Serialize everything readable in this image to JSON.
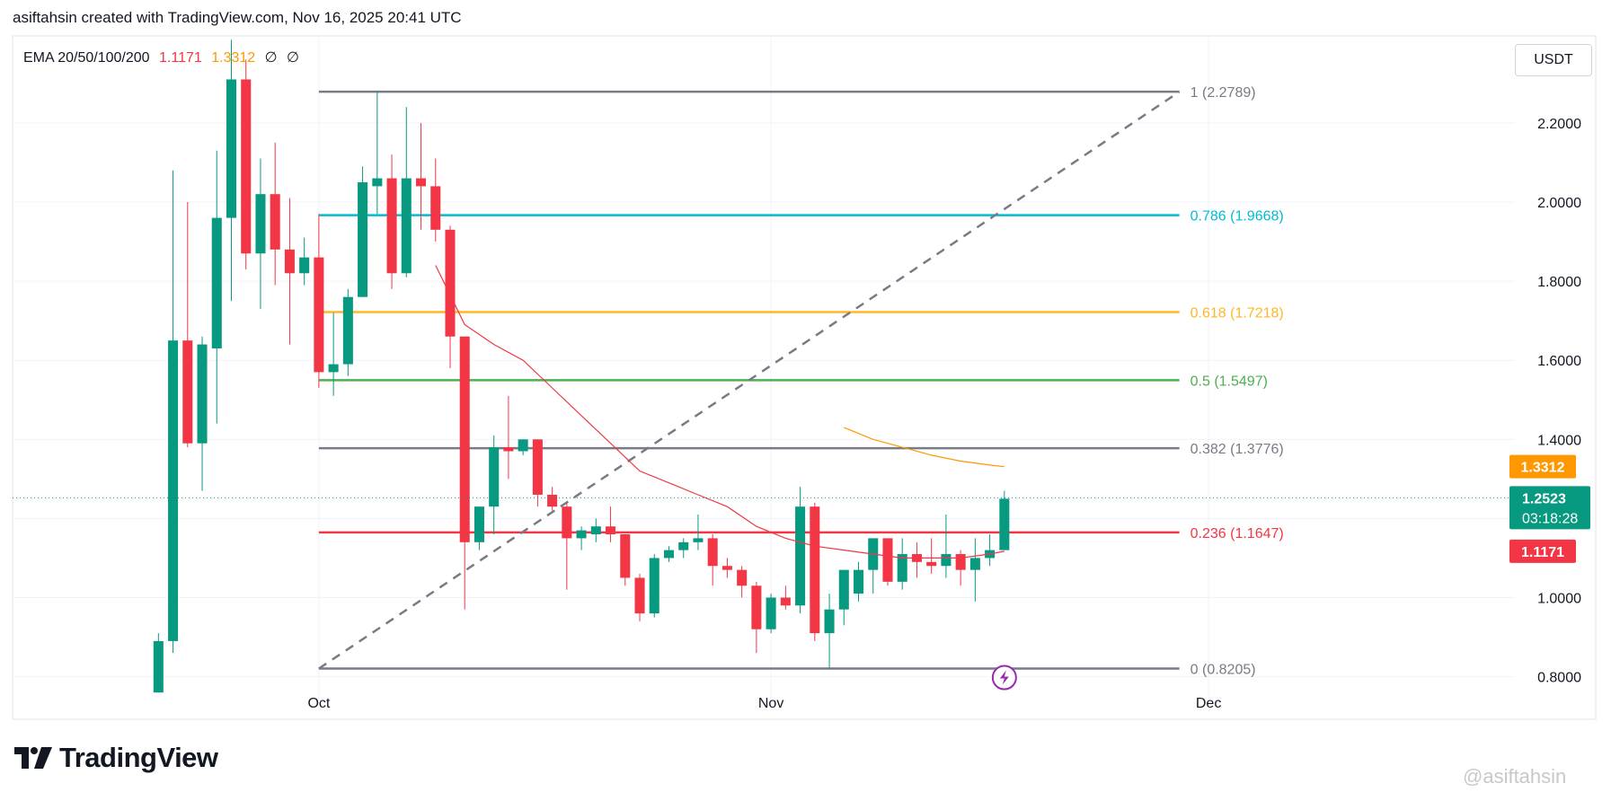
{
  "header": {
    "text": "asiftahsin created with TradingView.com, Nov 16, 2025 20:41 UTC"
  },
  "ema_legend": {
    "label": "EMA 20/50/100/200",
    "ema20": "1.1171",
    "ema50": "1.3312",
    "ema100": "∅",
    "ema200": "∅"
  },
  "currency": "USDT",
  "logo_text": "TradingView",
  "watermark": "@asiftahsin",
  "colors": {
    "up": "#089981",
    "down": "#f23645",
    "ema20": "#f23645",
    "ema50": "#ff9800",
    "last_price": "#089981"
  },
  "price_tags": {
    "ema50": {
      "value": "1.3312",
      "color": "#ff9800"
    },
    "last": {
      "value": "1.2523",
      "countdown": "03:18:28",
      "color": "#089981"
    },
    "ema20": {
      "value": "1.1171",
      "color": "#f23645"
    }
  },
  "chart_data": {
    "type": "candlestick",
    "ylim": [
      0.74,
      2.42
    ],
    "y_ticks": [
      "2.2000",
      "2.0000",
      "1.8000",
      "1.6000",
      "1.4000",
      "1.2000",
      "1.0000",
      "0.8000"
    ],
    "x_ticks": [
      {
        "label": "Oct",
        "date": "2025-10-01"
      },
      {
        "label": "Nov",
        "date": "2025-11-01"
      },
      {
        "label": "Dec",
        "date": "2025-12-01"
      }
    ],
    "xlim": [
      "2025-09-10",
      "2025-12-22"
    ],
    "candles": [
      {
        "d": "2025-09-20",
        "o": 0.76,
        "h": 0.91,
        "l": 0.76,
        "c": 0.89
      },
      {
        "d": "2025-09-21",
        "o": 0.89,
        "h": 2.08,
        "l": 0.86,
        "c": 1.65
      },
      {
        "d": "2025-09-22",
        "o": 1.65,
        "h": 2.0,
        "l": 1.38,
        "c": 1.39
      },
      {
        "d": "2025-09-23",
        "o": 1.39,
        "h": 1.66,
        "l": 1.27,
        "c": 1.64
      },
      {
        "d": "2025-09-24",
        "o": 1.63,
        "h": 2.13,
        "l": 1.44,
        "c": 1.96
      },
      {
        "d": "2025-09-25",
        "o": 1.96,
        "h": 2.41,
        "l": 1.75,
        "c": 2.31
      },
      {
        "d": "2025-09-26",
        "o": 2.31,
        "h": 2.36,
        "l": 1.83,
        "c": 1.87
      },
      {
        "d": "2025-09-27",
        "o": 1.87,
        "h": 2.11,
        "l": 1.73,
        "c": 2.02
      },
      {
        "d": "2025-09-28",
        "o": 2.02,
        "h": 2.15,
        "l": 1.79,
        "c": 1.88
      },
      {
        "d": "2025-09-29",
        "o": 1.88,
        "h": 2.01,
        "l": 1.64,
        "c": 1.82
      },
      {
        "d": "2025-09-30",
        "o": 1.82,
        "h": 1.91,
        "l": 1.79,
        "c": 1.86
      },
      {
        "d": "2025-10-01",
        "o": 1.86,
        "h": 1.97,
        "l": 1.53,
        "c": 1.57
      },
      {
        "d": "2025-10-02",
        "o": 1.57,
        "h": 1.72,
        "l": 1.51,
        "c": 1.59
      },
      {
        "d": "2025-10-03",
        "o": 1.59,
        "h": 1.78,
        "l": 1.56,
        "c": 1.76
      },
      {
        "d": "2025-10-04",
        "o": 1.76,
        "h": 2.09,
        "l": 1.76,
        "c": 2.05
      },
      {
        "d": "2025-10-05",
        "o": 2.04,
        "h": 2.28,
        "l": 1.97,
        "c": 2.06
      },
      {
        "d": "2025-10-06",
        "o": 2.06,
        "h": 2.12,
        "l": 1.78,
        "c": 1.82
      },
      {
        "d": "2025-10-07",
        "o": 1.82,
        "h": 2.24,
        "l": 1.81,
        "c": 2.06
      },
      {
        "d": "2025-10-08",
        "o": 2.06,
        "h": 2.2,
        "l": 1.93,
        "c": 2.04
      },
      {
        "d": "2025-10-09",
        "o": 2.04,
        "h": 2.11,
        "l": 1.9,
        "c": 1.93
      },
      {
        "d": "2025-10-10",
        "o": 1.93,
        "h": 1.94,
        "l": 1.58,
        "c": 1.66
      },
      {
        "d": "2025-10-11",
        "o": 1.66,
        "h": 1.66,
        "l": 0.97,
        "c": 1.14
      },
      {
        "d": "2025-10-12",
        "o": 1.14,
        "h": 1.23,
        "l": 1.12,
        "c": 1.23
      },
      {
        "d": "2025-10-13",
        "o": 1.23,
        "h": 1.41,
        "l": 1.16,
        "c": 1.38
      },
      {
        "d": "2025-10-14",
        "o": 1.38,
        "h": 1.51,
        "l": 1.3,
        "c": 1.37
      },
      {
        "d": "2025-10-15",
        "o": 1.37,
        "h": 1.4,
        "l": 1.36,
        "c": 1.4
      },
      {
        "d": "2025-10-16",
        "o": 1.4,
        "h": 1.4,
        "l": 1.23,
        "c": 1.26
      },
      {
        "d": "2025-10-17",
        "o": 1.26,
        "h": 1.28,
        "l": 1.22,
        "c": 1.23
      },
      {
        "d": "2025-10-18",
        "o": 1.23,
        "h": 1.24,
        "l": 1.02,
        "c": 1.15
      },
      {
        "d": "2025-10-19",
        "o": 1.15,
        "h": 1.18,
        "l": 1.12,
        "c": 1.17
      },
      {
        "d": "2025-10-20",
        "o": 1.16,
        "h": 1.2,
        "l": 1.14,
        "c": 1.18
      },
      {
        "d": "2025-10-21",
        "o": 1.18,
        "h": 1.23,
        "l": 1.14,
        "c": 1.16
      },
      {
        "d": "2025-10-22",
        "o": 1.16,
        "h": 1.16,
        "l": 1.03,
        "c": 1.05
      },
      {
        "d": "2025-10-23",
        "o": 1.05,
        "h": 1.06,
        "l": 0.94,
        "c": 0.96
      },
      {
        "d": "2025-10-24",
        "o": 0.96,
        "h": 1.11,
        "l": 0.95,
        "c": 1.1
      },
      {
        "d": "2025-10-25",
        "o": 1.1,
        "h": 1.13,
        "l": 1.09,
        "c": 1.12
      },
      {
        "d": "2025-10-26",
        "o": 1.12,
        "h": 1.15,
        "l": 1.1,
        "c": 1.14
      },
      {
        "d": "2025-10-27",
        "o": 1.14,
        "h": 1.21,
        "l": 1.12,
        "c": 1.15
      },
      {
        "d": "2025-10-28",
        "o": 1.15,
        "h": 1.16,
        "l": 1.03,
        "c": 1.08
      },
      {
        "d": "2025-10-29",
        "o": 1.08,
        "h": 1.1,
        "l": 1.05,
        "c": 1.07
      },
      {
        "d": "2025-10-30",
        "o": 1.07,
        "h": 1.08,
        "l": 1.0,
        "c": 1.03
      },
      {
        "d": "2025-10-31",
        "o": 1.03,
        "h": 1.04,
        "l": 0.86,
        "c": 0.92
      },
      {
        "d": "2025-11-01",
        "o": 0.92,
        "h": 1.01,
        "l": 0.91,
        "c": 1.0
      },
      {
        "d": "2025-11-02",
        "o": 1.0,
        "h": 1.03,
        "l": 0.97,
        "c": 0.98
      },
      {
        "d": "2025-11-03",
        "o": 0.98,
        "h": 1.28,
        "l": 0.96,
        "c": 1.23
      },
      {
        "d": "2025-11-04",
        "o": 1.23,
        "h": 1.24,
        "l": 0.89,
        "c": 0.91
      },
      {
        "d": "2025-11-05",
        "o": 0.91,
        "h": 1.01,
        "l": 0.82,
        "c": 0.97
      },
      {
        "d": "2025-11-06",
        "o": 0.97,
        "h": 1.07,
        "l": 0.93,
        "c": 1.07
      },
      {
        "d": "2025-11-07",
        "o": 1.01,
        "h": 1.09,
        "l": 0.99,
        "c": 1.07
      },
      {
        "d": "2025-11-08",
        "o": 1.07,
        "h": 1.14,
        "l": 1.01,
        "c": 1.15
      },
      {
        "d": "2025-11-09",
        "o": 1.15,
        "h": 1.15,
        "l": 1.03,
        "c": 1.04
      },
      {
        "d": "2025-11-10",
        "o": 1.04,
        "h": 1.15,
        "l": 1.02,
        "c": 1.11
      },
      {
        "d": "2025-11-11",
        "o": 1.11,
        "h": 1.14,
        "l": 1.05,
        "c": 1.09
      },
      {
        "d": "2025-11-12",
        "o": 1.09,
        "h": 1.15,
        "l": 1.06,
        "c": 1.08
      },
      {
        "d": "2025-11-13",
        "o": 1.08,
        "h": 1.21,
        "l": 1.05,
        "c": 1.11
      },
      {
        "d": "2025-11-14",
        "o": 1.11,
        "h": 1.12,
        "l": 1.03,
        "c": 1.07
      },
      {
        "d": "2025-11-15",
        "o": 1.07,
        "h": 1.15,
        "l": 0.99,
        "c": 1.1
      },
      {
        "d": "2025-11-16",
        "o": 1.1,
        "h": 1.16,
        "l": 1.08,
        "c": 1.12
      },
      {
        "d": "2025-11-17",
        "o": 1.12,
        "h": 1.27,
        "l": 1.12,
        "c": 1.25
      }
    ],
    "ema20": [
      {
        "d": "2025-10-09",
        "v": 1.84
      },
      {
        "d": "2025-10-11",
        "v": 1.69
      },
      {
        "d": "2025-10-13",
        "v": 1.64
      },
      {
        "d": "2025-10-15",
        "v": 1.6
      },
      {
        "d": "2025-10-17",
        "v": 1.53
      },
      {
        "d": "2025-10-19",
        "v": 1.46
      },
      {
        "d": "2025-10-21",
        "v": 1.39
      },
      {
        "d": "2025-10-23",
        "v": 1.32
      },
      {
        "d": "2025-10-25",
        "v": 1.29
      },
      {
        "d": "2025-10-27",
        "v": 1.26
      },
      {
        "d": "2025-10-29",
        "v": 1.23
      },
      {
        "d": "2025-10-31",
        "v": 1.18
      },
      {
        "d": "2025-11-02",
        "v": 1.15
      },
      {
        "d": "2025-11-04",
        "v": 1.13
      },
      {
        "d": "2025-11-06",
        "v": 1.12
      },
      {
        "d": "2025-11-08",
        "v": 1.11
      },
      {
        "d": "2025-11-10",
        "v": 1.1
      },
      {
        "d": "2025-11-12",
        "v": 1.1
      },
      {
        "d": "2025-11-14",
        "v": 1.1
      },
      {
        "d": "2025-11-16",
        "v": 1.11
      },
      {
        "d": "2025-11-17",
        "v": 1.117
      }
    ],
    "ema50": [
      {
        "d": "2025-11-06",
        "v": 1.43
      },
      {
        "d": "2025-11-08",
        "v": 1.4
      },
      {
        "d": "2025-11-10",
        "v": 1.38
      },
      {
        "d": "2025-11-12",
        "v": 1.36
      },
      {
        "d": "2025-11-14",
        "v": 1.345
      },
      {
        "d": "2025-11-16",
        "v": 1.335
      },
      {
        "d": "2025-11-17",
        "v": 1.331
      }
    ],
    "last_price": 1.2523,
    "fib": {
      "start": "2025-10-01",
      "end": "2025-11-29",
      "low": 0.8205,
      "high": 2.2789,
      "levels": [
        {
          "label": "1 (2.2789)",
          "value": 2.2789,
          "color": "#787b86"
        },
        {
          "label": "0.786 (1.9668)",
          "value": 1.9668,
          "color": "#00bcd4"
        },
        {
          "label": "0.618 (1.7218)",
          "value": 1.7218,
          "color": "#ffb726"
        },
        {
          "label": "0.5 (1.5497)",
          "value": 1.5497,
          "color": "#4caf50"
        },
        {
          "label": "0.382 (1.3776)",
          "value": 1.3776,
          "color": "#787b86"
        },
        {
          "label": "0.236 (1.1647)",
          "value": 1.1647,
          "color": "#f23645"
        },
        {
          "label": "0 (0.8205)",
          "value": 0.8205,
          "color": "#787b86"
        }
      ]
    }
  }
}
